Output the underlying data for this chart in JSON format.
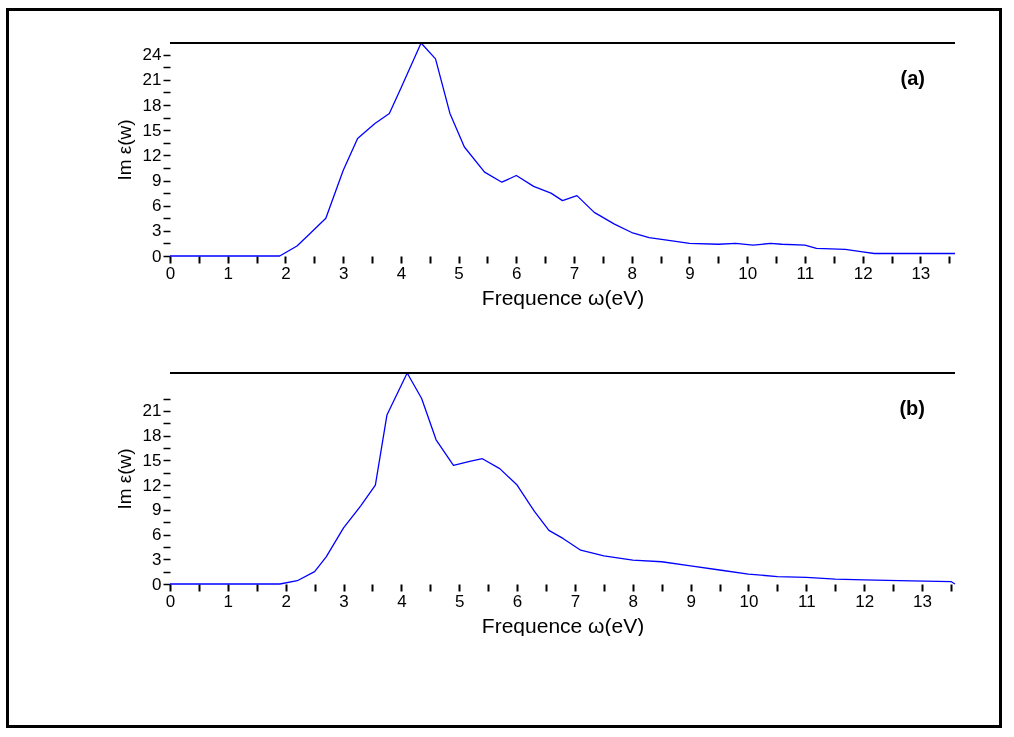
{
  "chart_data": [
    {
      "type": "line",
      "xlabel": "Frequence ω(eV)",
      "ylabel": "Im ε(w)",
      "annotations": [
        "(a)"
      ],
      "grid": false,
      "marker": "none",
      "line_style": "solid",
      "xlim": [
        0,
        13.6
      ],
      "ylim": [
        0,
        25.4
      ],
      "xticks": [
        0,
        {
          "value": 0.5,
          "label": null
        },
        1,
        {
          "value": 1.5,
          "label": null
        },
        2,
        {
          "value": 2.5,
          "label": null
        },
        3,
        {
          "value": 3.5,
          "label": null
        },
        4,
        {
          "value": 4.5,
          "label": null
        },
        5,
        {
          "value": 5.5,
          "label": null
        },
        6,
        {
          "value": 6.5,
          "label": null
        },
        7,
        {
          "value": 7.5,
          "label": null
        },
        8,
        {
          "value": 8.5,
          "label": null
        },
        9,
        {
          "value": 9.5,
          "label": null
        },
        10,
        {
          "value": 10.5,
          "label": null
        },
        11,
        {
          "value": 11.5,
          "label": null
        },
        12,
        {
          "value": 12.5,
          "label": null
        },
        13,
        {
          "value": 13.5,
          "label": null
        }
      ],
      "yticks": [
        0,
        {
          "value": 1.5,
          "label": null
        },
        3,
        {
          "value": 4.5,
          "label": null
        },
        6,
        {
          "value": 7.5,
          "label": null
        },
        9,
        {
          "value": 10.5,
          "label": null
        },
        12,
        {
          "value": 13.5,
          "label": null
        },
        15,
        {
          "value": 16.5,
          "label": null
        },
        18,
        {
          "value": 19.5,
          "label": null
        },
        21,
        {
          "value": 22.5,
          "label": null
        },
        24
      ],
      "series": [
        {
          "color": "#0000ff",
          "x": [
            0,
            1.9,
            2.2,
            2.4,
            2.7,
            3.0,
            3.25,
            3.55,
            3.8,
            4.0,
            4.35,
            4.6,
            4.85,
            5.1,
            5.45,
            5.75,
            6.0,
            6.3,
            6.6,
            6.8,
            7.05,
            7.35,
            7.7,
            8.0,
            8.3,
            8.7,
            9.0,
            9.5,
            9.8,
            10.1,
            10.4,
            10.6,
            11.0,
            11.2,
            11.7,
            12.0,
            12.2,
            13.6
          ],
          "values": [
            0,
            0,
            1.2,
            2.5,
            4.5,
            10.2,
            14,
            15.8,
            17,
            20,
            25.4,
            23.5,
            17,
            13,
            10,
            8.8,
            9.6,
            8.3,
            7.5,
            6.6,
            7.2,
            5.2,
            3.8,
            2.8,
            2.2,
            1.8,
            1.5,
            1.4,
            1.5,
            1.3,
            1.5,
            1.4,
            1.3,
            0.9,
            0.8,
            0.5,
            0.3,
            0.3
          ]
        }
      ]
    },
    {
      "type": "line",
      "xlabel": "Frequence ω(eV)",
      "ylabel": "Im ε(w)",
      "annotations": [
        "(b)"
      ],
      "grid": false,
      "marker": "none",
      "line_style": "solid",
      "xlim": [
        0,
        13.57
      ],
      "ylim": [
        0,
        25.6
      ],
      "xticks": [
        0,
        {
          "value": 0.5,
          "label": null
        },
        1,
        {
          "value": 1.5,
          "label": null
        },
        2,
        {
          "value": 2.5,
          "label": null
        },
        3,
        {
          "value": 3.5,
          "label": null
        },
        4,
        {
          "value": 4.5,
          "label": null
        },
        5,
        {
          "value": 5.5,
          "label": null
        },
        6,
        {
          "value": 6.5,
          "label": null
        },
        7,
        {
          "value": 7.5,
          "label": null
        },
        8,
        {
          "value": 8.5,
          "label": null
        },
        9,
        {
          "value": 9.5,
          "label": null
        },
        10,
        {
          "value": 10.5,
          "label": null
        },
        11,
        {
          "value": 11.5,
          "label": null
        },
        12,
        {
          "value": 12.5,
          "label": null
        },
        13,
        {
          "value": 13.5,
          "label": null
        }
      ],
      "yticks": [
        0,
        {
          "value": 1.5,
          "label": null
        },
        3,
        {
          "value": 4.5,
          "label": null
        },
        6,
        {
          "value": 7.5,
          "label": null
        },
        9,
        {
          "value": 10.5,
          "label": null
        },
        12,
        {
          "value": 13.5,
          "label": null
        },
        15,
        {
          "value": 16.5,
          "label": null
        },
        18,
        {
          "value": 19.5,
          "label": null
        },
        21,
        {
          "value": 22.5,
          "label": null
        }
      ],
      "series": [
        {
          "color": "#0000ff",
          "x": [
            0,
            1.9,
            2.2,
            2.5,
            2.7,
            3.0,
            3.3,
            3.55,
            3.75,
            4.1,
            4.35,
            4.6,
            4.9,
            5.2,
            5.4,
            5.7,
            6.0,
            6.3,
            6.55,
            6.8,
            7.1,
            7.5,
            8.0,
            8.5,
            9.0,
            9.5,
            10.0,
            10.5,
            11.0,
            11.5,
            12.0,
            12.6,
            13.5,
            13.57
          ],
          "values": [
            0,
            0,
            0.4,
            1.5,
            3.3,
            6.8,
            9.5,
            12,
            20.5,
            25.6,
            22.5,
            17.5,
            14.4,
            14.9,
            15.2,
            14,
            12,
            8.8,
            6.5,
            5.5,
            4.1,
            3.4,
            2.9,
            2.7,
            2.2,
            1.7,
            1.2,
            0.9,
            0.8,
            0.6,
            0.5,
            0.4,
            0.3,
            0
          ]
        }
      ]
    }
  ]
}
